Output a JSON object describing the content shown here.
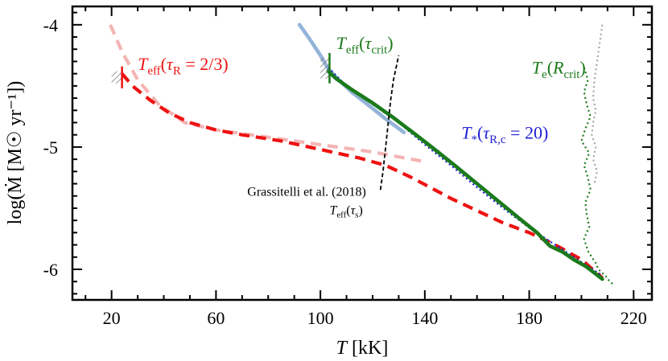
{
  "chart_data": {
    "type": "line",
    "xlabel_var": "T",
    "xlabel_unit": " [kK]",
    "ylabel": "log(Ṁ [M☉ yr⁻¹])",
    "xlim": [
      5,
      227
    ],
    "ylim": [
      -6.25,
      -3.85
    ],
    "xticks": [
      20,
      60,
      100,
      140,
      180,
      220
    ],
    "yticks": [
      -4,
      -5,
      -6
    ],
    "x_tick_labels": [
      "20",
      "60",
      "100",
      "140",
      "180",
      "220"
    ],
    "y_tick_labels": [
      "-4",
      "-5",
      "-6"
    ],
    "colors": {
      "red": "#ee1111",
      "pink": "#f4b4b4",
      "green": "#1b7a1b",
      "blue": "#1f1fd6",
      "lightblue": "#93b4d8",
      "lightgray": "#a6a6a6",
      "black": "#000000"
    },
    "series": [
      {
        "id": "teff-tauR-light",
        "color": "#f4b4b4",
        "style": "dashed",
        "x": [
          19.5,
          24,
          30,
          38,
          48,
          60,
          80,
          100,
          120,
          140
        ],
        "y": [
          -4.0,
          -4.22,
          -4.45,
          -4.65,
          -4.8,
          -4.86,
          -4.92,
          -4.98,
          -5.04,
          -5.12
        ]
      },
      {
        "id": "teff-tauR",
        "color": "#ee1111",
        "style": "dashed",
        "x": [
          24,
          28,
          35,
          42,
          50,
          60,
          70,
          85,
          100,
          115,
          125,
          135,
          150,
          160,
          170,
          180,
          190,
          200,
          208
        ],
        "y": [
          -4.4,
          -4.5,
          -4.62,
          -4.72,
          -4.8,
          -4.86,
          -4.9,
          -4.95,
          -5.02,
          -5.09,
          -5.15,
          -5.25,
          -5.42,
          -5.52,
          -5.62,
          -5.7,
          -5.8,
          -5.92,
          -6.07
        ]
      },
      {
        "id": "teff-tau-crit-light",
        "color": "#93b4d8",
        "style": "solid",
        "x": [
          92,
          96,
          100,
          103,
          107,
          112,
          118,
          125,
          132
        ],
        "y": [
          -4.0,
          -4.12,
          -4.25,
          -4.36,
          -4.45,
          -4.55,
          -4.65,
          -4.77,
          -4.88
        ]
      },
      {
        "id": "t-star-tauRc",
        "color": "#1f1fd6",
        "style": "dotted",
        "x": [
          103,
          110,
          120,
          130,
          140,
          150,
          160,
          170,
          180,
          190,
          200,
          208
        ],
        "y": [
          -4.35,
          -4.5,
          -4.65,
          -4.8,
          -4.98,
          -5.15,
          -5.33,
          -5.5,
          -5.66,
          -5.8,
          -5.94,
          -6.05
        ]
      },
      {
        "id": "teff-tau-crit",
        "color": "#1b7a1b",
        "style": "solid",
        "x": [
          103,
          106,
          112,
          120,
          128,
          136,
          145,
          152,
          160,
          168,
          176,
          183,
          188,
          193,
          197,
          202,
          208
        ],
        "y": [
          -4.38,
          -4.44,
          -4.53,
          -4.64,
          -4.76,
          -4.89,
          -5.04,
          -5.16,
          -5.3,
          -5.44,
          -5.58,
          -5.7,
          -5.81,
          -5.86,
          -5.92,
          -5.98,
          -6.08
        ]
      },
      {
        "id": "te-rcrit-light",
        "color": "#a6a6a6",
        "style": "dotted",
        "x": [
          208,
          207,
          206,
          205,
          204.5,
          205.5,
          204.5,
          204,
          205.5,
          204.5,
          206,
          205
        ],
        "y": [
          -4.0,
          -4.15,
          -4.3,
          -4.45,
          -4.6,
          -4.7,
          -4.8,
          -4.9,
          -5.0,
          -5.1,
          -5.2,
          -5.3
        ]
      },
      {
        "id": "te-rcrit",
        "color": "#1b7a1b",
        "style": "dotted",
        "x": [
          201,
          202.5,
          201,
          202,
          203.5,
          201.5,
          200,
          203,
          201,
          202.5,
          203.5,
          201.5,
          202,
          203,
          201,
          202.5,
          204,
          205.5,
          206.5,
          208,
          209.5,
          210.5,
          211.5,
          212.5
        ],
        "y": [
          -4.35,
          -4.45,
          -4.55,
          -4.65,
          -4.75,
          -4.85,
          -4.95,
          -5.05,
          -5.15,
          -5.25,
          -5.35,
          -5.45,
          -5.55,
          -5.65,
          -5.75,
          -5.85,
          -5.9,
          -5.95,
          -6.0,
          -6.03,
          -6.06,
          -6.09,
          -6.11,
          -6.13
        ]
      },
      {
        "id": "teff-taus",
        "color": "#000000",
        "style": "dashed-thin",
        "x": [
          123,
          124,
          125,
          126,
          127,
          128,
          129,
          130
        ],
        "y": [
          -5.35,
          -5.2,
          -5.0,
          -4.8,
          -4.6,
          -4.45,
          -4.35,
          -4.25
        ]
      }
    ],
    "endpoints": [
      {
        "x": 24,
        "y": -4.38,
        "y2": -4.48,
        "color": "#ee1111",
        "hatch_x": [
          20,
          24
        ]
      },
      {
        "x": 103.5,
        "y": -4.27,
        "y2": -4.44,
        "color": "#1b7a1b",
        "hatch_x": [
          100,
          103.5
        ]
      }
    ],
    "annotations": [
      {
        "id": "ann-teff-tauR",
        "color": "#ee1111",
        "x": 30,
        "y": -4.37,
        "size": 22,
        "parts": [
          {
            "t": "T",
            "i": true
          },
          {
            "t": "eff",
            "sub": true
          },
          {
            "t": "("
          },
          {
            "t": "τ",
            "i": true
          },
          {
            "t": "R",
            "sub": true
          },
          {
            "t": " = 2/3)"
          }
        ]
      },
      {
        "id": "ann-teff-tau-crit",
        "color": "#1b7a1b",
        "x": 106,
        "y": -4.2,
        "size": 22,
        "parts": [
          {
            "t": "T",
            "i": true
          },
          {
            "t": "eff",
            "sub": true
          },
          {
            "t": "("
          },
          {
            "t": "τ",
            "i": true
          },
          {
            "t": "crit",
            "sub": true
          },
          {
            "t": ")"
          }
        ]
      },
      {
        "id": "ann-t-star",
        "color": "#1f1fd6",
        "x": 154,
        "y": -4.93,
        "size": 22,
        "parts": [
          {
            "t": "T",
            "i": true
          },
          {
            "t": "*",
            "sub": true
          },
          {
            "t": "("
          },
          {
            "t": "τ",
            "i": true
          },
          {
            "t": "R,c",
            "sub": true
          },
          {
            "t": " = 20)"
          }
        ]
      },
      {
        "id": "ann-te-rcrit",
        "color": "#1b7a1b",
        "x": 181,
        "y": -4.4,
        "size": 22,
        "parts": [
          {
            "t": "T",
            "i": true
          },
          {
            "t": "e",
            "sub": true
          },
          {
            "t": "("
          },
          {
            "t": "R",
            "i": true
          },
          {
            "t": "crit",
            "sub": true
          },
          {
            "t": ")"
          }
        ]
      },
      {
        "id": "ann-grassitelli",
        "color": "#000000",
        "x": 72,
        "y": -5.4,
        "size": 16,
        "parts": [
          {
            "t": "Grassitelli et al. (2018)"
          }
        ]
      },
      {
        "id": "ann-teff-taus",
        "color": "#000000",
        "x": 103.5,
        "y": -5.55,
        "size": 16,
        "parts": [
          {
            "t": "T",
            "i": true
          },
          {
            "t": "eff",
            "sub": true
          },
          {
            "t": "("
          },
          {
            "t": "τ",
            "i": true
          },
          {
            "t": "s",
            "sub": true
          },
          {
            "t": ")"
          }
        ]
      }
    ]
  }
}
